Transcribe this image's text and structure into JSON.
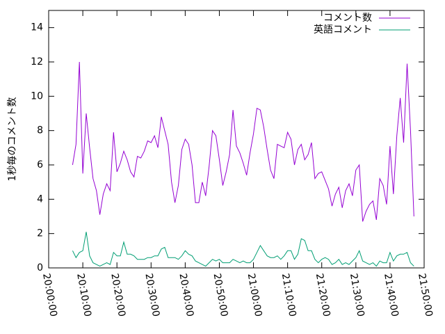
{
  "chart_data": {
    "type": "line",
    "ylabel": "1秒毎のコメント数",
    "legend": "top-right",
    "x": [
      "20:07:00",
      "20:08:00",
      "20:09:00",
      "20:10:00",
      "20:11:00",
      "20:12:00",
      "20:13:00",
      "20:14:00",
      "20:15:00",
      "20:16:00",
      "20:17:00",
      "20:18:00",
      "20:19:00",
      "20:20:00",
      "20:21:00",
      "20:22:00",
      "20:23:00",
      "20:24:00",
      "20:25:00",
      "20:26:00",
      "20:27:00",
      "20:28:00",
      "20:29:00",
      "20:30:00",
      "20:31:00",
      "20:32:00",
      "20:33:00",
      "20:34:00",
      "20:35:00",
      "20:36:00",
      "20:37:00",
      "20:38:00",
      "20:39:00",
      "20:40:00",
      "20:41:00",
      "20:42:00",
      "20:43:00",
      "20:44:00",
      "20:45:00",
      "20:46:00",
      "20:47:00",
      "20:48:00",
      "20:49:00",
      "20:50:00",
      "20:51:00",
      "20:52:00",
      "20:53:00",
      "20:54:00",
      "20:55:00",
      "20:56:00",
      "20:57:00",
      "20:58:00",
      "20:59:00",
      "21:00:00",
      "21:01:00",
      "21:02:00",
      "21:03:00",
      "21:04:00",
      "21:05:00",
      "21:06:00",
      "21:07:00",
      "21:08:00",
      "21:09:00",
      "21:10:00",
      "21:11:00",
      "21:12:00",
      "21:13:00",
      "21:14:00",
      "21:15:00",
      "21:16:00",
      "21:17:00",
      "21:18:00",
      "21:19:00",
      "21:20:00",
      "21:21:00",
      "21:22:00",
      "21:23:00",
      "21:24:00",
      "21:25:00",
      "21:26:00",
      "21:27:00",
      "21:28:00",
      "21:29:00",
      "21:30:00",
      "21:31:00",
      "21:32:00",
      "21:33:00",
      "21:34:00",
      "21:35:00",
      "21:36:00",
      "21:37:00",
      "21:38:00",
      "21:39:00",
      "21:40:00",
      "21:41:00",
      "21:42:00",
      "21:43:00",
      "21:44:00",
      "21:45:00",
      "21:46:00",
      "21:47:00"
    ],
    "series": [
      {
        "name": "コメント数",
        "color": "#9400d3",
        "values": [
          6.0,
          7.2,
          12.0,
          5.5,
          9.0,
          7.0,
          5.2,
          4.5,
          3.1,
          4.3,
          4.9,
          4.5,
          7.9,
          5.6,
          6.1,
          6.8,
          6.3,
          5.6,
          5.3,
          6.5,
          6.4,
          6.8,
          7.4,
          7.3,
          7.7,
          7.0,
          8.8,
          8.0,
          7.2,
          5.0,
          3.8,
          4.8,
          6.9,
          7.5,
          7.2,
          6.0,
          3.8,
          3.8,
          5.0,
          4.2,
          5.9,
          8.0,
          7.7,
          6.3,
          4.8,
          5.6,
          6.6,
          9.2,
          7.1,
          6.7,
          6.1,
          5.4,
          6.7,
          7.8,
          9.3,
          9.2,
          8.2,
          6.9,
          5.7,
          5.2,
          7.2,
          7.1,
          7.0,
          7.9,
          7.5,
          6.0,
          6.9,
          7.2,
          6.3,
          6.6,
          7.3,
          5.2,
          5.5,
          5.6,
          5.1,
          4.6,
          3.6,
          4.3,
          4.7,
          3.5,
          4.5,
          4.9,
          4.2,
          5.7,
          6.0,
          2.7,
          3.3,
          3.7,
          3.9,
          2.8,
          5.2,
          4.8,
          3.7,
          7.1,
          4.3,
          7.7,
          9.9,
          7.3,
          11.9,
          8.0,
          3.0
        ]
      },
      {
        "name": "英語コメント",
        "color": "#009e73",
        "values": [
          1.0,
          0.6,
          0.9,
          1.0,
          2.1,
          0.7,
          0.3,
          0.2,
          0.1,
          0.2,
          0.3,
          0.2,
          0.9,
          0.7,
          0.7,
          1.5,
          0.8,
          0.8,
          0.7,
          0.5,
          0.5,
          0.5,
          0.6,
          0.6,
          0.7,
          0.7,
          1.1,
          1.2,
          0.6,
          0.6,
          0.6,
          0.5,
          0.7,
          1.0,
          0.8,
          0.7,
          0.4,
          0.3,
          0.2,
          0.1,
          0.3,
          0.5,
          0.4,
          0.5,
          0.3,
          0.3,
          0.3,
          0.5,
          0.4,
          0.3,
          0.4,
          0.3,
          0.3,
          0.5,
          0.9,
          1.3,
          1.0,
          0.7,
          0.6,
          0.6,
          0.7,
          0.5,
          0.7,
          1.0,
          1.0,
          0.5,
          0.8,
          1.7,
          1.6,
          1.0,
          1.0,
          0.5,
          0.3,
          0.5,
          0.6,
          0.5,
          0.2,
          0.3,
          0.5,
          0.2,
          0.3,
          0.2,
          0.4,
          0.6,
          1.0,
          0.4,
          0.3,
          0.2,
          0.3,
          0.1,
          0.4,
          0.3,
          0.3,
          0.9,
          0.4,
          0.7,
          0.8,
          0.8,
          0.9,
          0.3,
          0.1
        ]
      }
    ],
    "xlim": [
      "20:00:00",
      "21:50:00"
    ],
    "xticks": [
      "20:00:00",
      "20:10:00",
      "20:20:00",
      "20:30:00",
      "20:40:00",
      "20:50:00",
      "21:00:00",
      "21:10:00",
      "21:20:00",
      "21:30:00",
      "21:40:00",
      "21:50:00"
    ],
    "ylim": [
      0,
      15
    ],
    "yticks": [
      0,
      2,
      4,
      6,
      8,
      10,
      12,
      14
    ]
  }
}
